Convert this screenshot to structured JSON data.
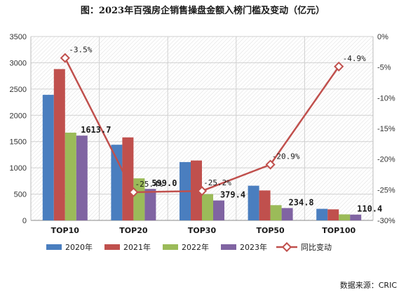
{
  "chart_data": {
    "type": "bar",
    "title": "图：2023年百强房企销售操盘金额入榜门槛及变动（亿元）",
    "categories": [
      "TOP10",
      "TOP20",
      "TOP30",
      "TOP50",
      "TOP100"
    ],
    "series": [
      {
        "name": "2020年",
        "type": "bar",
        "axis": "left",
        "color": "#4a7ebf",
        "values": [
          2390,
          1440,
          1110,
          660,
          220
        ]
      },
      {
        "name": "2021年",
        "type": "bar",
        "axis": "left",
        "color": "#c0504d",
        "values": [
          2880,
          1580,
          1140,
          570,
          210
        ]
      },
      {
        "name": "2022年",
        "type": "bar",
        "axis": "left",
        "color": "#9bbb59",
        "values": [
          1670,
          800,
          500,
          290,
          115
        ]
      },
      {
        "name": "2023年",
        "type": "bar",
        "axis": "left",
        "color": "#8064a2",
        "values": [
          1613.7,
          599.0,
          379.4,
          234.8,
          110.4
        ]
      },
      {
        "name": "同比变动",
        "type": "line",
        "axis": "right",
        "color": "#c0504d",
        "values": [
          -3.5,
          -25.4,
          -25.2,
          -20.9,
          -4.9
        ]
      }
    ],
    "bar_value_labels": [
      "1613.7",
      "599.0",
      "379.4",
      "234.8",
      "110.4"
    ],
    "line_value_labels": [
      "-3.5%",
      "-25.4%",
      "-25.2%",
      "-20.9%",
      "-4.9%"
    ],
    "y_left": {
      "ylim": [
        0,
        3500
      ],
      "ticks": [
        "0",
        "500",
        "1000",
        "1500",
        "2000",
        "2500",
        "3000",
        "3500"
      ]
    },
    "y_right": {
      "ylim": [
        -30,
        0
      ],
      "ticks": [
        "0%",
        "-5%",
        "-10%",
        "-15%",
        "-20%",
        "-25%",
        "-30%"
      ]
    },
    "grid": true,
    "legend_position": "bottom",
    "source": "数据来源：CRIC"
  }
}
